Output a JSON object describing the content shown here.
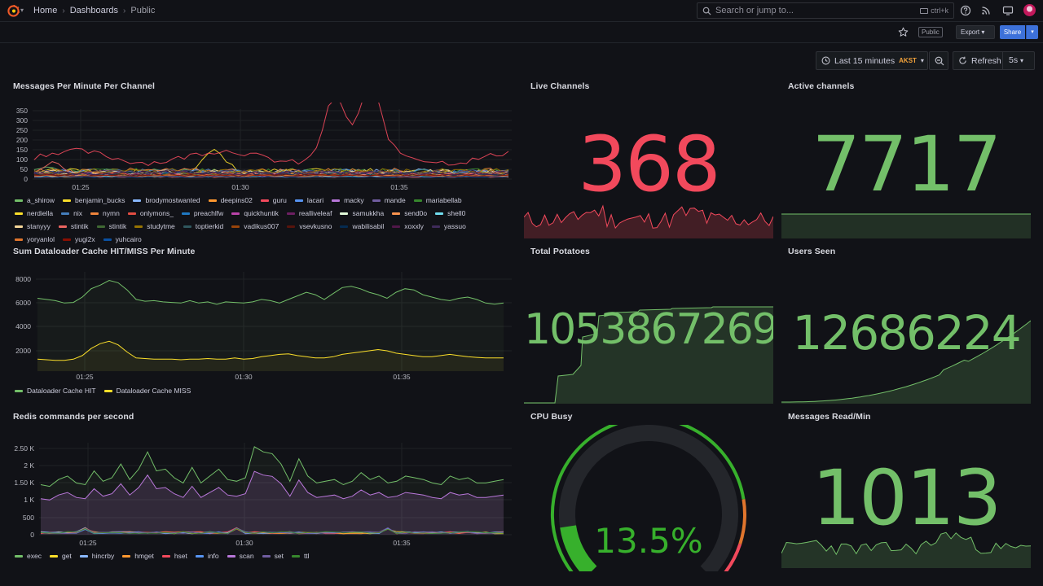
{
  "header": {
    "breadcrumb": [
      "Home",
      "Dashboards",
      "Public"
    ],
    "search_placeholder": "Search or jump to...",
    "search_shortcut": "ctrl+k"
  },
  "toolbar": {
    "public_badge": "Public",
    "export_label": "Export",
    "share_label": "Share"
  },
  "time_controls": {
    "range_label": "Last 15 minutes",
    "timezone": "AKST",
    "refresh_label": "Refresh",
    "interval": "5s"
  },
  "colors": {
    "red": "#f2495c",
    "green": "#73bf69",
    "yellow": "#fade2a",
    "orange": "#ff9830",
    "blue": "#5794f2",
    "purple": "#b877d9"
  },
  "panels": {
    "messages_per_minute": {
      "title": "Messages Per Minute Per Channel",
      "y_ticks": [
        "350",
        "300",
        "250",
        "200",
        "150",
        "100",
        "50",
        "0"
      ],
      "x_ticks": [
        "01:25",
        "01:30",
        "01:35"
      ],
      "legend": [
        {
          "label": "a_shirow",
          "color": "#73bf69"
        },
        {
          "label": "benjamin_bucks",
          "color": "#fade2a"
        },
        {
          "label": "brodymostwanted",
          "color": "#8ab8ff"
        },
        {
          "label": "deepins02",
          "color": "#ff9830"
        },
        {
          "label": "guru",
          "color": "#f2495c"
        },
        {
          "label": "lacari",
          "color": "#5794f2"
        },
        {
          "label": "macky",
          "color": "#b877d9"
        },
        {
          "label": "mande",
          "color": "#705da0"
        },
        {
          "label": "mariabellab",
          "color": "#37872d"
        },
        {
          "label": "nerdiella",
          "color": "#fade2a"
        },
        {
          "label": "nix",
          "color": "#447ebc"
        },
        {
          "label": "nymn",
          "color": "#ef843c"
        },
        {
          "label": "onlymons_",
          "color": "#e24d42"
        },
        {
          "label": "preachlfw",
          "color": "#1f78c1"
        },
        {
          "label": "quickhuntik",
          "color": "#ba43a9"
        },
        {
          "label": "realliveleaf",
          "color": "#6d1f62"
        },
        {
          "label": "samukkha",
          "color": "#e0f9d7"
        },
        {
          "label": "send0o",
          "color": "#f9934e"
        },
        {
          "label": "shell0",
          "color": "#70dbed"
        },
        {
          "label": "stanyyy",
          "color": "#f4d598"
        },
        {
          "label": "stintik",
          "color": "#ea6460"
        },
        {
          "label": "stintik",
          "color": "#3f6833"
        },
        {
          "label": "studytme",
          "color": "#967302"
        },
        {
          "label": "toptierkid",
          "color": "#2f575e"
        },
        {
          "label": "vadikus007",
          "color": "#99440a"
        },
        {
          "label": "vsevkusno",
          "color": "#58140c"
        },
        {
          "label": "wabilisabil",
          "color": "#052b51"
        },
        {
          "label": "xoxxly",
          "color": "#511749"
        },
        {
          "label": "yassuo",
          "color": "#3f2b5b"
        },
        {
          "label": "yoryanlol",
          "color": "#e0752d"
        },
        {
          "label": "yugi2x",
          "color": "#890f02"
        },
        {
          "label": "yuhcairo",
          "color": "#0a50a1"
        }
      ]
    },
    "live_channels": {
      "title": "Live Channels",
      "value": "368"
    },
    "active_channels": {
      "title": "Active channels",
      "value": "7717"
    },
    "dataloader": {
      "title": "Sum Dataloader Cache HIT/MISS Per Minute",
      "y_ticks": [
        "8000",
        "6000",
        "4000",
        "2000"
      ],
      "x_ticks": [
        "01:25",
        "01:30",
        "01:35"
      ],
      "legend": [
        {
          "label": "Dataloader Cache HIT",
          "color": "#73bf69"
        },
        {
          "label": "Dataloader Cache MISS",
          "color": "#fade2a"
        }
      ]
    },
    "total_potatoes": {
      "title": "Total Potatoes",
      "value": "1053867269"
    },
    "users_seen": {
      "title": "Users Seen",
      "value": "12686224"
    },
    "redis": {
      "title": "Redis commands per second",
      "y_ticks": [
        "2.50 K",
        "2 K",
        "1.50 K",
        "1 K",
        "500",
        "0"
      ],
      "x_ticks": [
        "01:25",
        "01:30",
        "01:35"
      ],
      "legend": [
        {
          "label": "exec",
          "color": "#73bf69"
        },
        {
          "label": "get",
          "color": "#fade2a"
        },
        {
          "label": "hincrby",
          "color": "#8ab8ff"
        },
        {
          "label": "hmget",
          "color": "#ff9830"
        },
        {
          "label": "hset",
          "color": "#f2495c"
        },
        {
          "label": "info",
          "color": "#5794f2"
        },
        {
          "label": "scan",
          "color": "#b877d9"
        },
        {
          "label": "set",
          "color": "#705da0"
        },
        {
          "label": "ttl",
          "color": "#37872d"
        }
      ]
    },
    "cpu_busy": {
      "title": "CPU Busy",
      "value": "13.5%",
      "percent": 13.5
    },
    "messages_read": {
      "title": "Messages Read/Min",
      "value": "1013"
    }
  }
}
